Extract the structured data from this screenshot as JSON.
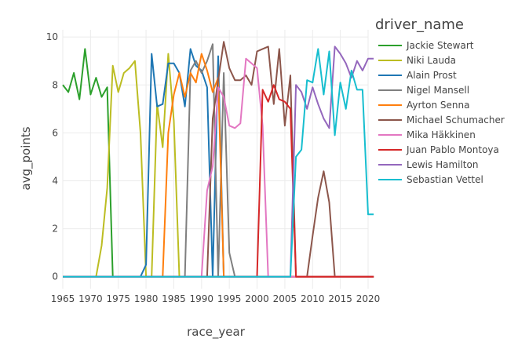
{
  "chart_data": {
    "type": "line",
    "xlabel": "race_year",
    "ylabel": "avg_points",
    "xlim": [
      1965,
      2020
    ],
    "ylim": [
      -0.5,
      10.3
    ],
    "x_ticks": [
      1965,
      1970,
      1975,
      1980,
      1985,
      1990,
      1995,
      2000,
      2005,
      2010,
      2015,
      2020
    ],
    "y_ticks": [
      0,
      2,
      4,
      6,
      8,
      10
    ],
    "grid": true,
    "legend_title": "driver_name",
    "legend_position": "right",
    "series": [
      {
        "name": "Jackie Stewart",
        "color": "#2ca02c",
        "x": [
          1965,
          1966,
          1967,
          1968,
          1969,
          1970,
          1971,
          1972,
          1973,
          1974,
          1975,
          1976,
          1977,
          1978,
          1979,
          1980,
          1981,
          1982,
          1983,
          1984,
          1985,
          1986,
          1987,
          1988,
          1989,
          1990,
          1991,
          1992,
          1993,
          1994,
          1995,
          1996,
          1997,
          1998,
          1999,
          2000,
          2001,
          2002,
          2003,
          2004,
          2005,
          2006,
          2007,
          2008,
          2009,
          2010,
          2011,
          2012,
          2013,
          2014,
          2015,
          2016,
          2017,
          2018,
          2019,
          2020,
          2021
        ],
        "y": [
          8.0,
          7.7,
          8.5,
          7.4,
          9.5,
          7.6,
          8.3,
          7.5,
          7.9,
          0,
          0,
          0,
          0,
          0,
          0,
          0,
          0,
          0,
          0,
          0,
          0,
          0,
          0,
          0,
          0,
          0,
          0,
          0,
          0,
          0,
          0,
          0,
          0,
          0,
          0,
          0,
          0,
          0,
          0,
          0,
          0,
          0,
          0,
          0,
          0,
          0,
          0,
          0,
          0,
          0,
          0,
          0,
          0,
          0,
          0,
          0,
          0
        ]
      },
      {
        "name": "Niki Lauda",
        "color": "#bcbd22",
        "x": [
          1965,
          1966,
          1967,
          1968,
          1969,
          1970,
          1971,
          1972,
          1973,
          1974,
          1975,
          1976,
          1977,
          1978,
          1979,
          1980,
          1981,
          1982,
          1983,
          1984,
          1985,
          1986,
          1987,
          1988,
          1989,
          1990,
          1991,
          1992,
          1993,
          1994,
          1995,
          1996,
          1997,
          1998,
          1999,
          2000,
          2001,
          2002,
          2003,
          2004,
          2005,
          2006,
          2007,
          2008,
          2009,
          2010,
          2011,
          2012,
          2013,
          2014,
          2015,
          2016,
          2017,
          2018,
          2019,
          2020,
          2021
        ],
        "y": [
          0,
          0,
          0,
          0,
          0,
          0,
          0,
          1.3,
          3.7,
          8.8,
          7.7,
          8.5,
          8.7,
          9.0,
          6.0,
          0,
          0,
          7.2,
          5.4,
          9.3,
          6.5,
          0,
          0,
          0,
          0,
          0,
          0,
          0,
          0,
          0,
          0,
          0,
          0,
          0,
          0,
          0,
          0,
          0,
          0,
          0,
          0,
          0,
          0,
          0,
          0,
          0,
          0,
          0,
          0,
          0,
          0,
          0,
          0,
          0,
          0,
          0,
          0
        ]
      },
      {
        "name": "Alain Prost",
        "color": "#1f77b4",
        "x": [
          1965,
          1966,
          1967,
          1968,
          1969,
          1970,
          1971,
          1972,
          1973,
          1974,
          1975,
          1976,
          1977,
          1978,
          1979,
          1980,
          1981,
          1982,
          1983,
          1984,
          1985,
          1986,
          1987,
          1988,
          1989,
          1990,
          1991,
          1992,
          1993,
          1994,
          1995,
          1996,
          1997,
          1998,
          1999,
          2000,
          2001,
          2002,
          2003,
          2004,
          2005,
          2006,
          2007,
          2008,
          2009,
          2010,
          2011,
          2012,
          2013,
          2014,
          2015,
          2016,
          2017,
          2018,
          2019,
          2020,
          2021
        ],
        "y": [
          0,
          0,
          0,
          0,
          0,
          0,
          0,
          0,
          0,
          0,
          0,
          0,
          0,
          0,
          0,
          0.5,
          9.3,
          7.1,
          7.2,
          8.9,
          8.9,
          8.5,
          7.1,
          9.5,
          8.8,
          8.6,
          7.9,
          0,
          9.2,
          0,
          0,
          0,
          0,
          0,
          0,
          0,
          0,
          0,
          0,
          0,
          0,
          0,
          0,
          0,
          0,
          0,
          0,
          0,
          0,
          0,
          0,
          0,
          0,
          0,
          0,
          0,
          0
        ]
      },
      {
        "name": "Nigel Mansell",
        "color": "#7f7f7f",
        "x": [
          1965,
          1966,
          1967,
          1968,
          1969,
          1970,
          1971,
          1972,
          1973,
          1974,
          1975,
          1976,
          1977,
          1978,
          1979,
          1980,
          1981,
          1982,
          1983,
          1984,
          1985,
          1986,
          1987,
          1988,
          1989,
          1990,
          1991,
          1992,
          1993,
          1994,
          1995,
          1996,
          1997,
          1998,
          1999,
          2000,
          2001,
          2002,
          2003,
          2004,
          2005,
          2006,
          2007,
          2008,
          2009,
          2010,
          2011,
          2012,
          2013,
          2014,
          2015,
          2016,
          2017,
          2018,
          2019,
          2020,
          2021
        ],
        "y": [
          0,
          0,
          0,
          0,
          0,
          0,
          0,
          0,
          0,
          0,
          0,
          0,
          0,
          0,
          0,
          0,
          0,
          0,
          0,
          0,
          0,
          0,
          0,
          8.6,
          9.0,
          8.5,
          9.0,
          9.7,
          0,
          8.5,
          1.0,
          0,
          0,
          0,
          0,
          0,
          0,
          0,
          0,
          0,
          0,
          0,
          0,
          0,
          0,
          0,
          0,
          0,
          0,
          0,
          0,
          0,
          0,
          0,
          0,
          0,
          0
        ]
      },
      {
        "name": "Ayrton Senna",
        "color": "#ff7f0e",
        "x": [
          1965,
          1966,
          1967,
          1968,
          1969,
          1970,
          1971,
          1972,
          1973,
          1974,
          1975,
          1976,
          1977,
          1978,
          1979,
          1980,
          1981,
          1982,
          1983,
          1984,
          1985,
          1986,
          1987,
          1988,
          1989,
          1990,
          1991,
          1992,
          1993,
          1994,
          1995,
          1996,
          1997,
          1998,
          1999,
          2000,
          2001,
          2002,
          2003,
          2004,
          2005,
          2006,
          2007,
          2008,
          2009,
          2010,
          2011,
          2012,
          2013,
          2014,
          2015,
          2016,
          2017,
          2018,
          2019,
          2020,
          2021
        ],
        "y": [
          0,
          0,
          0,
          0,
          0,
          0,
          0,
          0,
          0,
          0,
          0,
          0,
          0,
          0,
          0,
          0,
          0,
          0,
          0,
          6.0,
          7.6,
          8.5,
          7.5,
          8.5,
          8.1,
          9.3,
          8.6,
          7.7,
          8.3,
          0,
          0,
          0,
          0,
          0,
          0,
          0,
          0,
          0,
          0,
          0,
          0,
          0,
          0,
          0,
          0,
          0,
          0,
          0,
          0,
          0,
          0,
          0,
          0,
          0,
          0,
          0,
          0
        ]
      },
      {
        "name": "Michael Schumacher",
        "color": "#8c564b",
        "x": [
          1965,
          1966,
          1967,
          1968,
          1969,
          1970,
          1971,
          1972,
          1973,
          1974,
          1975,
          1976,
          1977,
          1978,
          1979,
          1980,
          1981,
          1982,
          1983,
          1984,
          1985,
          1986,
          1987,
          1988,
          1989,
          1990,
          1991,
          1992,
          1993,
          1994,
          1995,
          1996,
          1997,
          1998,
          1999,
          2000,
          2001,
          2002,
          2003,
          2004,
          2005,
          2006,
          2007,
          2008,
          2009,
          2010,
          2011,
          2012,
          2013,
          2014,
          2015,
          2016,
          2017,
          2018,
          2019,
          2020,
          2021
        ],
        "y": [
          0,
          0,
          0,
          0,
          0,
          0,
          0,
          0,
          0,
          0,
          0,
          0,
          0,
          0,
          0,
          0,
          0,
          0,
          0,
          0,
          0,
          0,
          0,
          0,
          0,
          0,
          0,
          6.6,
          8.2,
          9.8,
          8.7,
          8.2,
          8.2,
          8.4,
          8.0,
          9.4,
          9.5,
          9.6,
          7.2,
          9.5,
          6.3,
          8.4,
          0,
          0,
          0,
          1.7,
          3.3,
          4.4,
          3.1,
          0,
          0,
          0,
          0,
          0,
          0,
          0,
          0
        ]
      },
      {
        "name": "Mika Häkkinen",
        "color": "#e377c2",
        "x": [
          1965,
          1966,
          1967,
          1968,
          1969,
          1970,
          1971,
          1972,
          1973,
          1974,
          1975,
          1976,
          1977,
          1978,
          1979,
          1980,
          1981,
          1982,
          1983,
          1984,
          1985,
          1986,
          1987,
          1988,
          1989,
          1990,
          1991,
          1992,
          1993,
          1994,
          1995,
          1996,
          1997,
          1998,
          1999,
          2000,
          2001,
          2002,
          2003,
          2004,
          2005,
          2006,
          2007,
          2008,
          2009,
          2010,
          2011,
          2012,
          2013,
          2014,
          2015,
          2016,
          2017,
          2018,
          2019,
          2020,
          2021
        ],
        "y": [
          0,
          0,
          0,
          0,
          0,
          0,
          0,
          0,
          0,
          0,
          0,
          0,
          0,
          0,
          0,
          0,
          0,
          0,
          0,
          0,
          0,
          0,
          0,
          0,
          0,
          0,
          3.6,
          4.6,
          7.9,
          7.5,
          6.3,
          6.2,
          6.4,
          9.1,
          8.9,
          8.7,
          6.3,
          0,
          0,
          0,
          0,
          0,
          0,
          0,
          0,
          0,
          0,
          0,
          0,
          0,
          0,
          0,
          0,
          0,
          0,
          0,
          0
        ]
      },
      {
        "name": "Juan Pablo Montoya",
        "color": "#d62728",
        "x": [
          1965,
          1966,
          1967,
          1968,
          1969,
          1970,
          1971,
          1972,
          1973,
          1974,
          1975,
          1976,
          1977,
          1978,
          1979,
          1980,
          1981,
          1982,
          1983,
          1984,
          1985,
          1986,
          1987,
          1988,
          1989,
          1990,
          1991,
          1992,
          1993,
          1994,
          1995,
          1996,
          1997,
          1998,
          1999,
          2000,
          2001,
          2002,
          2003,
          2004,
          2005,
          2006,
          2007,
          2008,
          2009,
          2010,
          2011,
          2012,
          2013,
          2014,
          2015,
          2016,
          2017,
          2018,
          2019,
          2020,
          2021
        ],
        "y": [
          0,
          0,
          0,
          0,
          0,
          0,
          0,
          0,
          0,
          0,
          0,
          0,
          0,
          0,
          0,
          0,
          0,
          0,
          0,
          0,
          0,
          0,
          0,
          0,
          0,
          0,
          0,
          0,
          0,
          0,
          0,
          0,
          0,
          0,
          0,
          0,
          7.8,
          7.3,
          8.0,
          7.4,
          7.3,
          7.0,
          0,
          0,
          0,
          0,
          0,
          0,
          0,
          0,
          0,
          0,
          0,
          0,
          0,
          0,
          0
        ]
      },
      {
        "name": "Lewis Hamilton",
        "color": "#9467bd",
        "x": [
          1965,
          1966,
          1967,
          1968,
          1969,
          1970,
          1971,
          1972,
          1973,
          1974,
          1975,
          1976,
          1977,
          1978,
          1979,
          1980,
          1981,
          1982,
          1983,
          1984,
          1985,
          1986,
          1987,
          1988,
          1989,
          1990,
          1991,
          1992,
          1993,
          1994,
          1995,
          1996,
          1997,
          1998,
          1999,
          2000,
          2001,
          2002,
          2003,
          2004,
          2005,
          2006,
          2007,
          2008,
          2009,
          2010,
          2011,
          2012,
          2013,
          2014,
          2015,
          2016,
          2017,
          2018,
          2019,
          2020,
          2021
        ],
        "y": [
          0,
          0,
          0,
          0,
          0,
          0,
          0,
          0,
          0,
          0,
          0,
          0,
          0,
          0,
          0,
          0,
          0,
          0,
          0,
          0,
          0,
          0,
          0,
          0,
          0,
          0,
          0,
          0,
          0,
          0,
          0,
          0,
          0,
          0,
          0,
          0,
          0,
          0,
          0,
          0,
          0,
          0,
          8.0,
          7.7,
          7.0,
          7.9,
          7.2,
          6.6,
          6.2,
          9.6,
          9.3,
          8.9,
          8.3,
          9.0,
          8.6,
          9.1,
          9.1
        ]
      },
      {
        "name": "Sebastian Vettel",
        "color": "#17becf",
        "x": [
          1965,
          1966,
          1967,
          1968,
          1969,
          1970,
          1971,
          1972,
          1973,
          1974,
          1975,
          1976,
          1977,
          1978,
          1979,
          1980,
          1981,
          1982,
          1983,
          1984,
          1985,
          1986,
          1987,
          1988,
          1989,
          1990,
          1991,
          1992,
          1993,
          1994,
          1995,
          1996,
          1997,
          1998,
          1999,
          2000,
          2001,
          2002,
          2003,
          2004,
          2005,
          2006,
          2007,
          2008,
          2009,
          2010,
          2011,
          2012,
          2013,
          2014,
          2015,
          2016,
          2017,
          2018,
          2019,
          2020,
          2021
        ],
        "y": [
          0,
          0,
          0,
          0,
          0,
          0,
          0,
          0,
          0,
          0,
          0,
          0,
          0,
          0,
          0,
          0,
          0,
          0,
          0,
          0,
          0,
          0,
          0,
          0,
          0,
          0,
          0,
          0,
          0,
          0,
          0,
          0,
          0,
          0,
          0,
          0,
          0,
          0,
          0,
          0,
          0,
          0,
          5.0,
          5.3,
          8.2,
          8.1,
          9.5,
          7.6,
          9.4,
          5.9,
          8.1,
          7.0,
          8.6,
          7.8,
          7.8,
          2.6,
          2.6
        ]
      }
    ]
  }
}
